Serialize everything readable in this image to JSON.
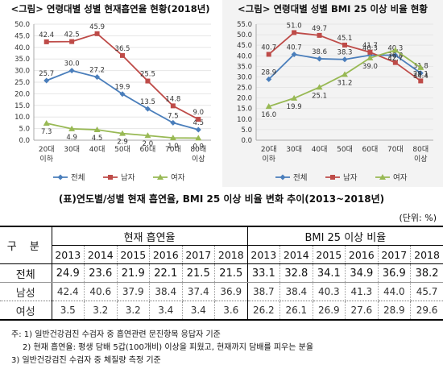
{
  "charts": {
    "left": {
      "title": "<그림> 연령대별 성별 현재흡연율 현황(2018년)",
      "ylim": [
        0,
        50
      ],
      "yticks": [
        "0.0",
        "5.0",
        "10.0",
        "15.0",
        "20.0",
        "25.0",
        "30.0",
        "35.0",
        "40.0",
        "45.0",
        "50.0"
      ]
    },
    "right": {
      "title": "<그림> 연령대별 성별 BMI 25 이상 비율 현황",
      "ylim": [
        0,
        55
      ],
      "yticks": [
        "0.0",
        "5.0",
        "10.0",
        "15.0",
        "20.0",
        "25.0",
        "30.0",
        "35.0",
        "40.0",
        "45.0",
        "50.0",
        "55.0"
      ]
    }
  },
  "chart_data": [
    {
      "type": "line",
      "title": "<그림> 연령대별 성별 현재흡연율 현황(2018년)",
      "categories": [
        "20대 이하",
        "30대",
        "40대",
        "50대",
        "60대",
        "70대",
        "80대 이상"
      ],
      "ylim": [
        0,
        50
      ],
      "legend": "bottom",
      "series": [
        {
          "name": "전체",
          "color": "#4a7ebb",
          "marker": "diamond",
          "values": [
            25.7,
            30.0,
            27.2,
            19.9,
            13.5,
            7.5,
            4.5
          ]
        },
        {
          "name": "남자",
          "color": "#be4b48",
          "marker": "square",
          "values": [
            42.4,
            42.5,
            45.9,
            36.5,
            25.5,
            14.8,
            9.0
          ]
        },
        {
          "name": "여자",
          "color": "#98b954",
          "marker": "triangle",
          "values": [
            7.3,
            4.9,
            4.5,
            2.9,
            2.0,
            1.0,
            0.9
          ]
        }
      ]
    },
    {
      "type": "line",
      "title": "<그림> 연령대별 성별 BMI 25 이상 비율 현황",
      "categories": [
        "20대 이하",
        "30대",
        "40대",
        "50대",
        "60대",
        "70대",
        "80대 이상"
      ],
      "ylim": [
        0,
        55
      ],
      "legend": "bottom",
      "series": [
        {
          "name": "전체",
          "color": "#4a7ebb",
          "marker": "diamond",
          "values": [
            28.9,
            40.7,
            38.6,
            38.3,
            40.3,
            40.3,
            31.8
          ]
        },
        {
          "name": "남자",
          "color": "#be4b48",
          "marker": "square",
          "values": [
            40.7,
            51.0,
            49.7,
            45.1,
            41.7,
            36.8,
            28.1
          ]
        },
        {
          "name": "여자",
          "color": "#98b954",
          "marker": "triangle",
          "values": [
            16.0,
            19.9,
            25.1,
            31.2,
            39.0,
            42.7,
            34.4
          ]
        }
      ]
    },
    {
      "type": "table",
      "title": "(표)연도별/성별 현재 흡연율, BMI 25 이상 비율 변화 추이(2013~2018년)",
      "unit": "(단위: %)",
      "row_header": "구 분",
      "groups": [
        "현재 흡연율",
        "BMI 25 이상 비율"
      ],
      "years": [
        "2013",
        "2014",
        "2015",
        "2016",
        "2017",
        "2018"
      ],
      "rows": [
        {
          "label": "전체",
          "smoking": [
            "24.9",
            "23.6",
            "21.9",
            "22.1",
            "21.5",
            "21.5"
          ],
          "bmi": [
            "33.1",
            "32.8",
            "34.1",
            "34.9",
            "36.9",
            "38.2"
          ]
        },
        {
          "label": "남성",
          "smoking": [
            "42.4",
            "40.6",
            "37.9",
            "38.4",
            "37.4",
            "36.9"
          ],
          "bmi": [
            "38.7",
            "38.4",
            "40.3",
            "41.3",
            "44.0",
            "45.7"
          ]
        },
        {
          "label": "여성",
          "smoking": [
            "3.5",
            "3.2",
            "3.2",
            "3.4",
            "3.4",
            "3.6"
          ],
          "bmi": [
            "26.2",
            "26.1",
            "26.9",
            "27.6",
            "28.9",
            "29.6"
          ]
        }
      ]
    }
  ],
  "notes": [
    "주: 1) 일반건강검진 수검자 중 흡연관련 문진항목 응답자 기준",
    "2) 현재 흡연율: 평생 담배 5갑(100개비) 이상을 피웠고, 현재까지 담배를 피우는 분율",
    "3) 일반건강검진 수검자 중 체질량 측정 기준"
  ]
}
